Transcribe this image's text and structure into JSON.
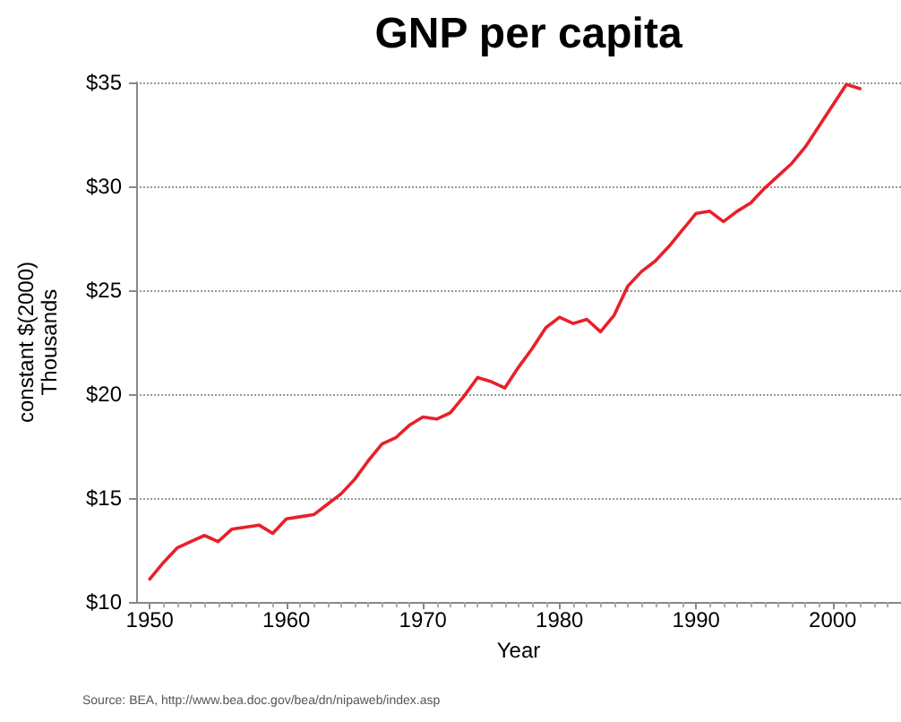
{
  "chart_data": {
    "type": "line",
    "title": "GNP per capita",
    "xlabel": "Year",
    "ylabel": "constant $(2000)\nThousands",
    "annotations": [
      "Source: BEA, http://www.bea.doc.gov/bea/dn/nipaweb/index.asp"
    ],
    "x": [
      1950,
      1951,
      1952,
      1953,
      1954,
      1955,
      1956,
      1957,
      1958,
      1959,
      1960,
      1961,
      1962,
      1963,
      1964,
      1965,
      1966,
      1967,
      1968,
      1969,
      1970,
      1971,
      1972,
      1973,
      1974,
      1975,
      1976,
      1977,
      1978,
      1979,
      1980,
      1981,
      1982,
      1983,
      1984,
      1985,
      1986,
      1987,
      1988,
      1989,
      1990,
      1991,
      1992,
      1993,
      1994,
      1995,
      1996,
      1997,
      1998,
      1999,
      2000,
      2001,
      2002
    ],
    "series": [
      {
        "color": "#e8202a",
        "values": [
          11.1,
          11.9,
          12.6,
          12.9,
          13.2,
          12.9,
          13.5,
          13.6,
          13.7,
          13.3,
          14.0,
          14.1,
          14.2,
          14.7,
          15.2,
          15.9,
          16.8,
          17.6,
          17.9,
          18.5,
          18.9,
          18.8,
          19.1,
          19.9,
          20.8,
          20.6,
          20.3,
          21.3,
          22.2,
          23.2,
          23.7,
          23.4,
          23.6,
          23.0,
          23.8,
          25.2,
          25.9,
          26.4,
          27.1,
          27.9,
          28.7,
          28.8,
          28.3,
          28.8,
          29.2,
          29.9,
          30.5,
          31.1,
          31.9,
          32.9,
          33.9,
          34.9,
          34.7
        ]
      }
    ],
    "xlim": [
      1949,
      2005
    ],
    "xticks": [
      1950,
      1960,
      1970,
      1980,
      1990,
      2000
    ],
    "ylim": [
      10,
      35
    ],
    "yticks": [
      {
        "value": 10,
        "label": "$10"
      },
      {
        "value": 15,
        "label": "$15"
      },
      {
        "value": 20,
        "label": "$20"
      },
      {
        "value": 25,
        "label": "$25"
      },
      {
        "value": 30,
        "label": "$30"
      },
      {
        "value": 35,
        "label": "$35"
      }
    ],
    "grid": "y",
    "marker": "none",
    "line_style": "solid"
  }
}
